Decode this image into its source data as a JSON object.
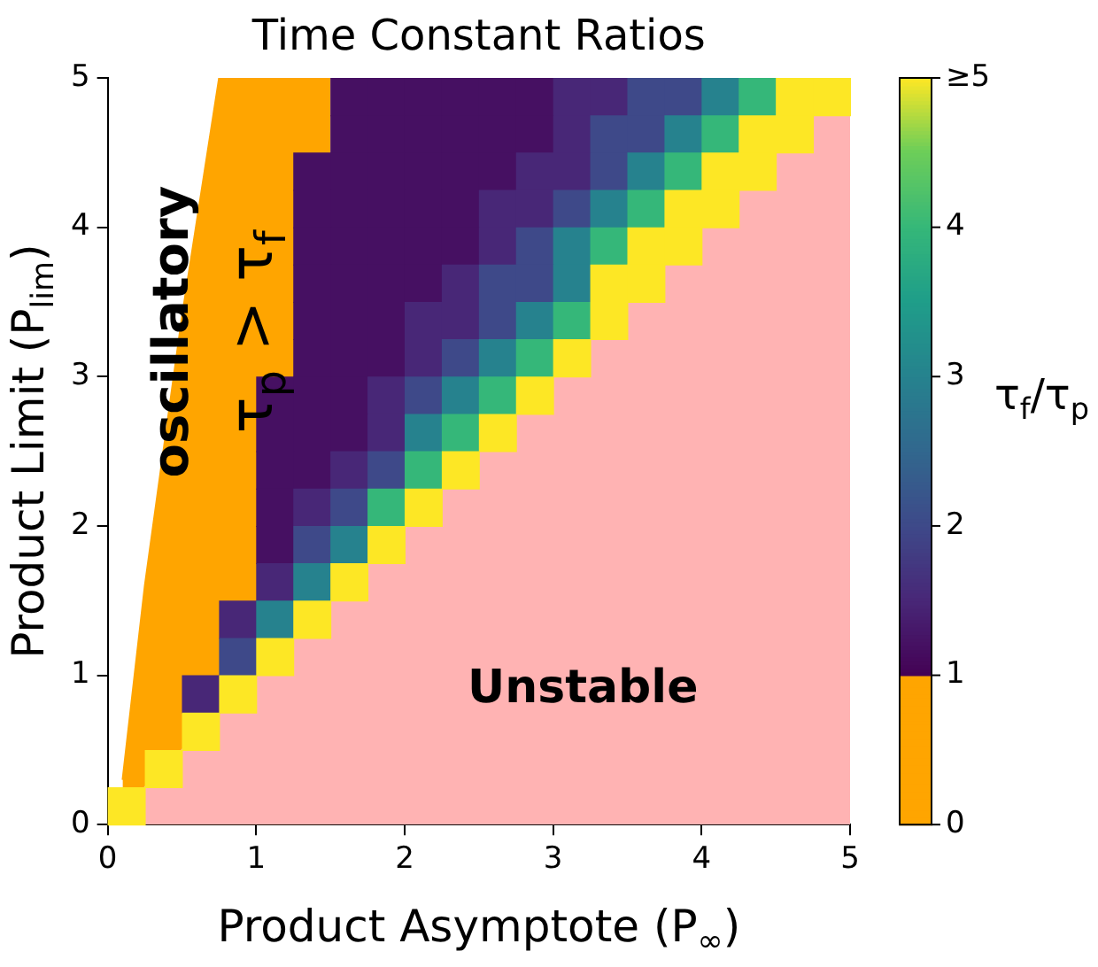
{
  "chart_data": {
    "type": "heatmap",
    "title": "Time Constant Ratios",
    "xlabel": "Product Asymptote (P$_{∞}$)",
    "ylabel": "Product Limit (P$_{lim}$)",
    "clabel": "τ$_{f}$/τ$_{p}$",
    "xlim": [
      0,
      5
    ],
    "ylim": [
      0,
      5
    ],
    "xticks": [
      0,
      1,
      2,
      3,
      4,
      5
    ],
    "yticks": [
      0,
      1,
      2,
      3,
      4,
      5
    ],
    "clim": [
      0,
      5
    ],
    "cticks": [
      0,
      1,
      2,
      3,
      4,
      {
        "value": 5,
        "label": "≥5"
      }
    ],
    "annotations": [
      "oscillatory",
      "τ$_{p}$ > τ$_{f}$",
      "Unstable"
    ],
    "series": [
      {
        "type": "area",
        "color": "#ffb3b3",
        "x": [
          0,
          5
        ],
        "values": [
          0,
          5
        ]
      },
      {
        "type": "area",
        "color": "#ffa500",
        "x": [
          0.1,
          0.25,
          0.25,
          0.5,
          0.5,
          0.75,
          0.75,
          1.0,
          1.0,
          1.25,
          1.25,
          1.5
        ],
        "values": [
          0.3,
          1.6,
          1.6,
          3.4,
          3.4,
          5,
          5,
          5,
          5,
          5,
          5,
          5
        ]
      }
    ],
    "cells": [
      [
        null,
        null,
        null,
        null,
        null,
        null,
        1.2,
        1.2,
        1.2,
        1.2,
        1.2,
        1.2,
        1.5,
        1.5,
        2,
        2,
        3,
        4,
        5,
        5
      ],
      [
        null,
        null,
        null,
        null,
        null,
        null,
        1.2,
        1.2,
        1.2,
        1.2,
        1.2,
        1.2,
        1.5,
        2,
        2,
        3,
        4,
        5,
        5,
        null
      ],
      [
        null,
        null,
        null,
        null,
        null,
        1.2,
        1.2,
        1.2,
        1.2,
        1.2,
        1.2,
        1.5,
        1.5,
        2,
        3,
        4,
        5,
        5,
        null,
        null
      ],
      [
        null,
        null,
        null,
        null,
        null,
        1.2,
        1.2,
        1.2,
        1.2,
        1.2,
        1.5,
        1.5,
        2,
        3,
        4,
        5,
        5,
        null,
        null,
        null
      ],
      [
        null,
        null,
        null,
        null,
        null,
        1.2,
        1.2,
        1.2,
        1.2,
        1.2,
        1.5,
        2,
        3,
        4,
        5,
        5,
        null,
        null,
        null,
        null
      ],
      [
        null,
        null,
        null,
        null,
        null,
        1.2,
        1.2,
        1.2,
        1.2,
        1.5,
        2,
        2,
        3,
        5,
        5,
        null,
        null,
        null,
        null,
        null
      ],
      [
        null,
        null,
        null,
        null,
        null,
        1.2,
        1.2,
        1.2,
        1.5,
        1.5,
        2,
        3,
        4,
        5,
        null,
        null,
        null,
        null,
        null,
        null
      ],
      [
        null,
        null,
        null,
        null,
        null,
        1.2,
        1.2,
        1.2,
        1.5,
        2,
        3,
        4,
        5,
        null,
        null,
        null,
        null,
        null,
        null,
        null
      ],
      [
        null,
        null,
        null,
        null,
        1.2,
        1.2,
        1.2,
        1.5,
        2,
        3,
        4,
        5,
        null,
        null,
        null,
        null,
        null,
        null,
        null,
        null
      ],
      [
        null,
        null,
        null,
        null,
        1.2,
        1.2,
        1.2,
        1.5,
        3,
        4,
        5,
        null,
        null,
        null,
        null,
        null,
        null,
        null,
        null,
        null
      ],
      [
        null,
        null,
        null,
        null,
        1.2,
        1.2,
        1.5,
        2,
        4,
        5,
        null,
        null,
        null,
        null,
        null,
        null,
        null,
        null,
        null,
        null
      ],
      [
        null,
        null,
        null,
        null,
        1.2,
        1.5,
        2,
        4,
        5,
        null,
        null,
        null,
        null,
        null,
        null,
        null,
        null,
        null,
        null,
        null
      ],
      [
        null,
        null,
        null,
        null,
        1.2,
        2,
        3,
        5,
        null,
        null,
        null,
        null,
        null,
        null,
        null,
        null,
        null,
        null,
        null,
        null
      ],
      [
        null,
        null,
        null,
        null,
        1.5,
        3,
        5,
        null,
        null,
        null,
        null,
        null,
        null,
        null,
        null,
        null,
        null,
        null,
        null,
        null
      ],
      [
        null,
        null,
        null,
        1.5,
        3,
        5,
        null,
        null,
        null,
        null,
        null,
        null,
        null,
        null,
        null,
        null,
        null,
        null,
        null,
        null
      ],
      [
        null,
        null,
        null,
        2,
        5,
        null,
        null,
        null,
        null,
        null,
        null,
        null,
        null,
        null,
        null,
        null,
        null,
        null,
        null,
        null
      ],
      [
        null,
        null,
        1.5,
        5,
        null,
        null,
        null,
        null,
        null,
        null,
        null,
        null,
        null,
        null,
        null,
        null,
        null,
        null,
        null,
        null
      ],
      [
        null,
        null,
        5,
        null,
        null,
        null,
        null,
        null,
        null,
        null,
        null,
        null,
        null,
        null,
        null,
        null,
        null,
        null,
        null,
        null
      ],
      [
        null,
        5,
        null,
        null,
        null,
        null,
        null,
        null,
        null,
        null,
        null,
        null,
        null,
        null,
        null,
        null,
        null,
        null,
        null,
        null
      ],
      [
        5,
        null,
        null,
        null,
        null,
        null,
        null,
        null,
        null,
        null,
        null,
        null,
        null,
        null,
        null,
        null,
        null,
        null,
        null,
        null
      ]
    ]
  }
}
